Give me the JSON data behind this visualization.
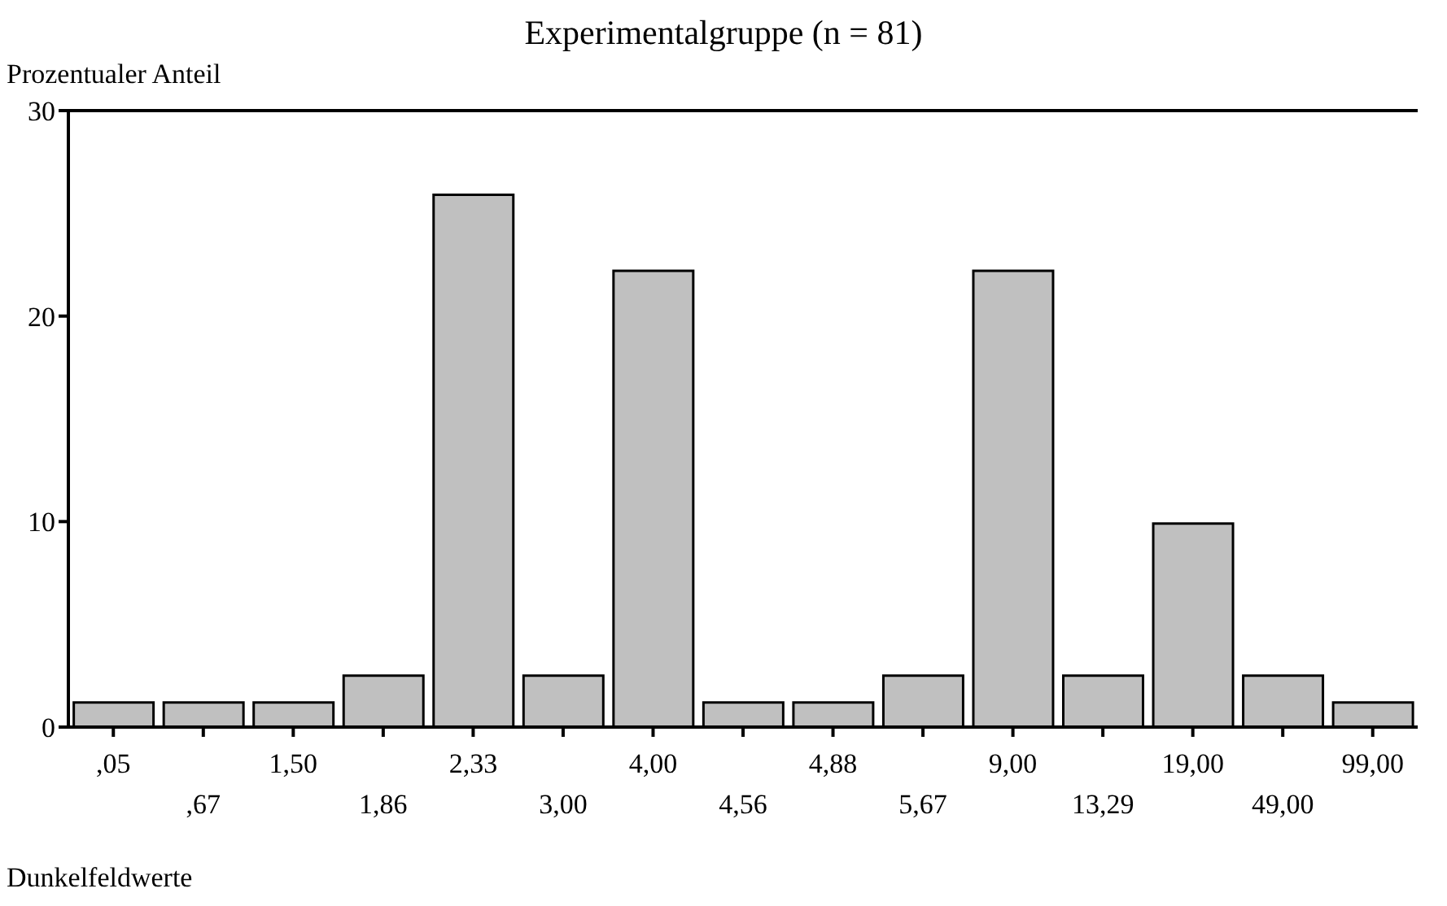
{
  "chart_data": {
    "type": "bar",
    "title": "Experimentalgruppe  (n = 81)",
    "ylabel": "Prozentualer Anteil",
    "xlabel": "Dunkelfeldwerte",
    "categories": [
      ",05",
      ",67",
      "1,50",
      "1,86",
      "2,33",
      "3,00",
      "4,00",
      "4,56",
      "4,88",
      "5,67",
      "9,00",
      "13,29",
      "19,00",
      "49,00",
      "99,00"
    ],
    "values": [
      1.2,
      1.2,
      1.2,
      2.5,
      25.9,
      2.5,
      22.2,
      1.2,
      1.2,
      2.5,
      22.2,
      2.5,
      9.9,
      2.5,
      1.2
    ],
    "color": "#c0c0c0",
    "ylim": [
      0,
      30
    ],
    "yticks": [
      0,
      10,
      20,
      30
    ]
  }
}
